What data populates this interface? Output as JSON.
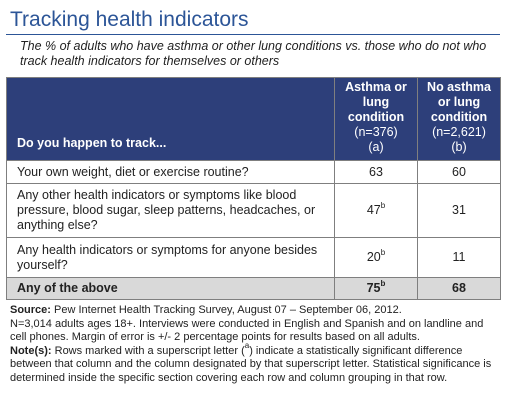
{
  "title": "Tracking health indicators",
  "subtitle": "The % of adults who have asthma or other lung conditions vs. those who do not who track health indicators for themselves or others",
  "table": {
    "question_header": "Do you happen to track...",
    "columns": [
      {
        "label": "Asthma or lung condition",
        "n": "(n=376)",
        "letter": "(a)"
      },
      {
        "label": "No asthma or lung condition",
        "n": "(n=2,621)",
        "letter": "(b)"
      }
    ],
    "rows": [
      {
        "label": "Your own weight, diet or exercise routine?",
        "a": "63",
        "a_sig": "",
        "b": "60",
        "b_sig": ""
      },
      {
        "label": "Any other health indicators or symptoms like blood pressure, blood sugar, sleep patterns, headcaches, or anything else?",
        "a": "47",
        "a_sig": "b",
        "b": "31",
        "b_sig": ""
      },
      {
        "label": "Any health indicators or symptoms for anyone besides yourself?",
        "a": "20",
        "a_sig": "b",
        "b": "11",
        "b_sig": ""
      },
      {
        "label": "Any of the above",
        "a": "75",
        "a_sig": "b",
        "b": "68",
        "b_sig": ""
      }
    ]
  },
  "notes": {
    "source_label": "Source:",
    "source_text": " Pew Internet Health Tracking Survey, August 07 – September 06, 2012.",
    "sample_text": "N=3,014 adults ages 18+. Interviews were conducted in English and Spanish and on landline and cell phones.  Margin of error is +/- 2 percentage points for results based on all adults.",
    "note_label": "Note(s):",
    "note_text_1": " Rows marked with a superscript letter (",
    "note_sup": "a",
    "note_text_2": ") indicate a statistically significant difference between that column and the column designated by that superscript letter. Statistical significance is determined inside the specific section covering each row and column grouping in that row."
  }
}
